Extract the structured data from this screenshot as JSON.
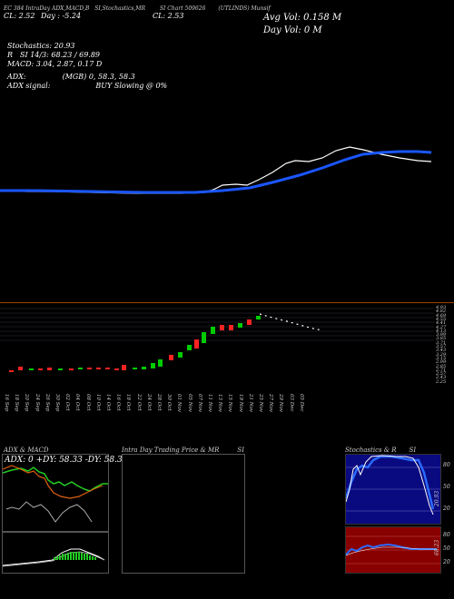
{
  "header": {
    "line1": "EC 384 IntraDay ADX,MACD,B",
    "line1b": "SI,Stochastics,MR",
    "line1c": "SI Chart 509626",
    "line1d": "(UTLINDS) Munsif",
    "line2": "CL: 2.52",
    "line2b": "Day : -5.24",
    "line2c": "CL: 2.53",
    "avg_vol": "Avg Vol: 0.158   M",
    "day_vol": "Day Vol: 0   M"
  },
  "indicators": {
    "stoch": "Stochastics: 20.93",
    "rsi": "SI 14/3: 68.23 / 69.89",
    "rsi_prefix": "R",
    "macd": "MACD: 3.04, 2.87, 0.17 D",
    "adx_label": "ADX:",
    "adx_vals": "(MGB) 0, 58.3, 58.3",
    "adx_signal_label": "ADX  signal:",
    "signal": "BUY Slowing @ 0%"
  },
  "price_axis": [
    "4.93",
    "4.82",
    "4.69",
    "4.55",
    "4.41",
    "4.27",
    "4.13",
    "3.99",
    "3.85",
    "3.71",
    "3.57",
    "3.43",
    "3.29",
    "3.15",
    "2.99",
    "2.85",
    "2.71",
    "2.57",
    "2.43",
    "2.25"
  ],
  "x_labels": [
    "16 Sep",
    "18 Sep",
    "20 Sep",
    "24 Sep",
    "26 Sep",
    "30 Sep",
    "02 Oct",
    "04 Oct",
    "08 Oct",
    "10 Oct",
    "14 Oct",
    "16 Oct",
    "18 Oct",
    "22 Oct",
    "24 Oct",
    "28 Oct",
    "30 Oct",
    "01 Nov",
    "05 Nov",
    "07 Nov",
    "11 Nov",
    "13 Nov",
    "15 Nov",
    "19 Nov",
    "21 Nov",
    "25 Nov",
    "27 Nov",
    "29 Nov",
    "03 Dec",
    "05 Dec"
  ],
  "panels": {
    "adx_macd": {
      "title": "ADX  & MACD",
      "legend": "ADX: 0  +DY: 58.33  -DY: 58.33"
    },
    "intraday": {
      "title": "Intra  Day Trading Price  & MR",
      "title_suffix": "SI"
    },
    "stoch_rsi": {
      "title": "Stochastics & R",
      "title_suffix": "SI",
      "stoch_ticks": [
        "80",
        "50",
        "20"
      ],
      "stoch_value": "20.93",
      "rsi_ticks": [
        "80",
        "50",
        "20"
      ],
      "rsi_value": "68.23"
    }
  },
  "colors": {
    "green": "#00cc00",
    "red": "#ff2222",
    "blue": "#1a56ff",
    "orange": "#e06010",
    "darkred": "#880000",
    "navy": "#0a0a80"
  }
}
